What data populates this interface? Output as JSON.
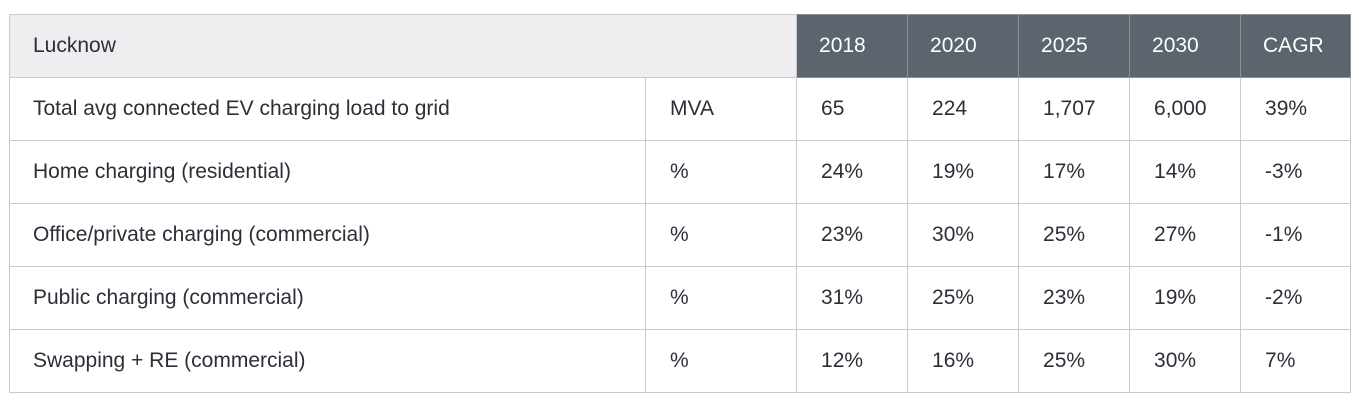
{
  "table": {
    "region": "Lucknow",
    "columns": [
      "2018",
      "2020",
      "2025",
      "2030",
      "CAGR"
    ],
    "rows": [
      {
        "label": "Total avg connected EV charging load to grid",
        "unit": "MVA",
        "values": [
          "65",
          "224",
          "1,707",
          "6,000",
          "39%"
        ]
      },
      {
        "label": "Home charging (residential)",
        "unit": "%",
        "values": [
          "24%",
          "19%",
          "17%",
          "14%",
          "-3%"
        ]
      },
      {
        "label": "Office/private charging (commercial)",
        "unit": "%",
        "values": [
          "23%",
          "30%",
          "25%",
          "27%",
          "-1%"
        ]
      },
      {
        "label": "Public charging (commercial)",
        "unit": "%",
        "values": [
          "31%",
          "25%",
          "23%",
          "19%",
          "-2%"
        ]
      },
      {
        "label": "Swapping + RE (commercial)",
        "unit": "%",
        "values": [
          "12%",
          "16%",
          "25%",
          "30%",
          "7%"
        ]
      }
    ]
  },
  "colors": {
    "header_dark": "#5c646d",
    "header_light": "#eeeef1",
    "text": "#2e2e38",
    "border": "#c9c9cf"
  }
}
